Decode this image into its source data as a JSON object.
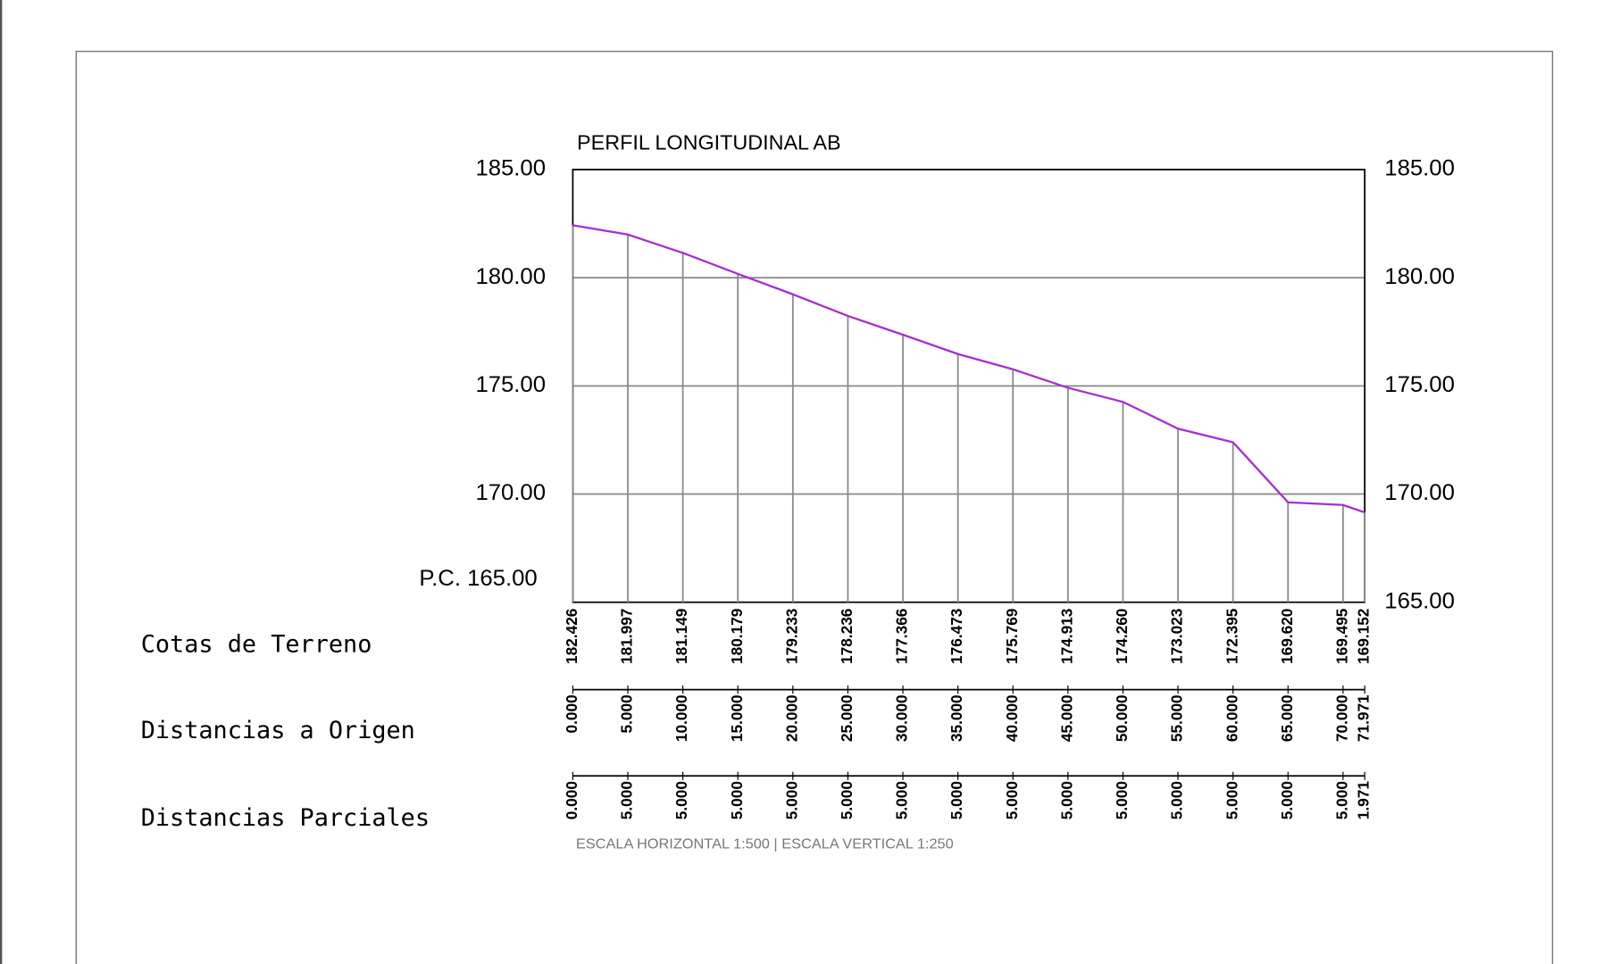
{
  "chart_data": {
    "type": "line",
    "title": "PERFIL LONGITUDINAL AB",
    "x_name": "Distancias a Origen",
    "x": [
      0,
      5,
      10,
      15,
      20,
      25,
      30,
      35,
      40,
      45,
      50,
      55,
      60,
      65,
      70,
      71.971
    ],
    "x_labels": [
      "0.000",
      "5.000",
      "10.000",
      "15.000",
      "20.000",
      "25.000",
      "30.000",
      "35.000",
      "40.000",
      "45.000",
      "50.000",
      "55.000",
      "60.000",
      "65.000",
      "70.000",
      "71.971"
    ],
    "series": [
      {
        "name": "Cotas de Terreno",
        "color": "#a62fd0",
        "values": [
          182.426,
          181.997,
          181.149,
          180.179,
          179.233,
          178.236,
          177.366,
          176.473,
          175.769,
          174.913,
          174.26,
          173.023,
          172.395,
          169.62,
          169.495,
          169.152
        ],
        "value_labels": [
          "182.426",
          "181.997",
          "181.149",
          "180.179",
          "179.233",
          "178.236",
          "177.366",
          "176.473",
          "175.769",
          "174.913",
          "174.260",
          "173.023",
          "172.395",
          "169.620",
          "169.495",
          "169.152"
        ]
      }
    ],
    "partial_distances": {
      "name": "Distancias Parciales",
      "values": [
        0,
        5,
        5,
        5,
        5,
        5,
        5,
        5,
        5,
        5,
        5,
        5,
        5,
        5,
        5,
        1.971
      ],
      "value_labels": [
        "0.000",
        "5.000",
        "5.000",
        "5.000",
        "5.000",
        "5.000",
        "5.000",
        "5.000",
        "5.000",
        "5.000",
        "5.000",
        "5.000",
        "5.000",
        "5.000",
        "5.000",
        "1.971"
      ]
    },
    "xlim": [
      0,
      71.971
    ],
    "ylim": [
      165,
      185
    ],
    "yticks": [
      {
        "value": 165,
        "label": "165.00"
      },
      {
        "value": 170,
        "label": "170.00"
      },
      {
        "value": 175,
        "label": "175.00"
      },
      {
        "value": 180,
        "label": "180.00"
      },
      {
        "value": 185,
        "label": "185.00"
      }
    ],
    "plane_of_comparison": {
      "value": 165,
      "label": "P.C. 165.00"
    },
    "grid": true,
    "footnote": "ESCALA HORIZONTAL 1:500  |  ESCALA VERTICAL 1:250"
  }
}
